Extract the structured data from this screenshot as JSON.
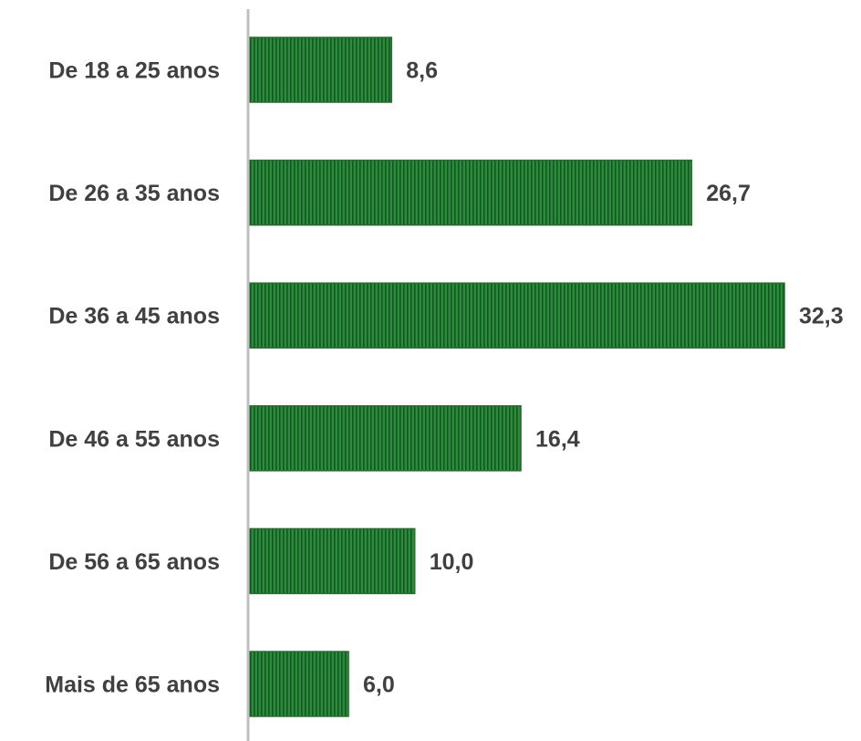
{
  "chart_data": {
    "type": "bar",
    "orientation": "horizontal",
    "categories": [
      "De 18 a 25 anos",
      "De 26 a 35 anos",
      "De 36 a 45 anos",
      "De 46 a 55 anos",
      "De 56 a 65 anos",
      "Mais de 65 anos"
    ],
    "values": [
      8.6,
      26.7,
      32.3,
      16.4,
      10.0,
      6.0
    ],
    "value_labels": [
      "8,6",
      "26,7",
      "32,3",
      "16,4",
      "10,0",
      "6,0"
    ],
    "title": "",
    "xlabel": "",
    "ylabel": "",
    "xlim": [
      0,
      32.3
    ],
    "grid": false,
    "legend": "none",
    "colors": {
      "bar_fill": "#2e8b3c",
      "bar_stripe": "#0d5a1f",
      "bar_border": "#2b6b33",
      "axis": "#bfbfbf",
      "text": "#404040"
    }
  }
}
